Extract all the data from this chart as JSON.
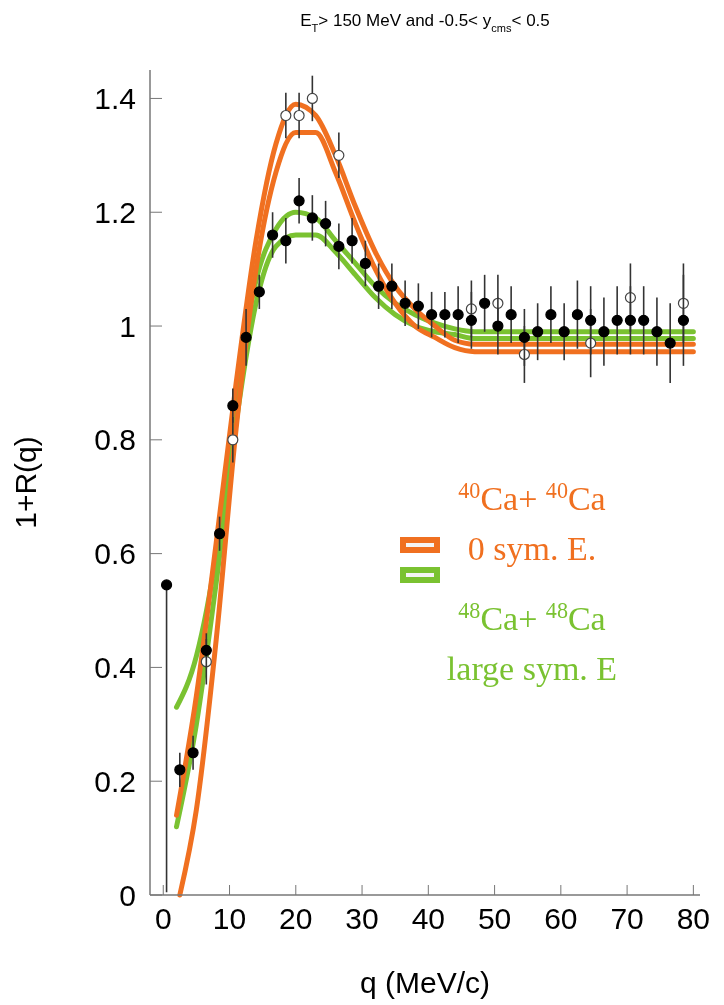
{
  "chart_data": {
    "type": "line",
    "title": "E$_{T}$> 150 MeV and -0.5< y$_{cms}$< 0.5",
    "xlabel": "q (MeV/c)",
    "ylabel": "1+R(q)",
    "xlim": [
      -2,
      81
    ],
    "xticks": [
      0,
      10,
      20,
      30,
      40,
      50,
      60,
      70,
      80
    ],
    "ylim": [
      0,
      1.45
    ],
    "yticks": [
      0,
      {
        "value": 0.2,
        "label": "0.2"
      },
      {
        "value": 0.4,
        "label": "0.4"
      },
      {
        "value": 0.6,
        "label": "0.6"
      },
      {
        "value": 0.8,
        "label": "0.8"
      },
      1,
      {
        "value": 1.2,
        "label": "1.2"
      },
      {
        "value": 1.4,
        "label": "1.4"
      }
    ],
    "grid": false,
    "legend": "right",
    "line_style": "solid",
    "marker": "none",
    "series": [
      {
        "name": "$^{48}$Ca+ $^{48}$Ca\nlarge sym. E",
        "color": "#7ac231",
        "x": [
          2,
          5,
          8,
          11,
          14,
          17,
          20,
          23,
          26,
          29,
          32,
          35,
          38,
          41,
          44,
          47,
          50,
          60,
          70,
          80
        ],
        "values": [
          0.33,
          0.42,
          0.6,
          0.88,
          1.08,
          1.17,
          1.2,
          1.19,
          1.15,
          1.11,
          1.07,
          1.04,
          1.02,
          1.005,
          0.995,
          0.99,
          0.99,
          0.99,
          0.99,
          0.99
        ]
      },
      {
        "color": "#7ac231",
        "x": [
          2,
          5,
          8,
          11,
          14,
          17,
          20,
          23,
          26,
          29,
          32,
          35,
          38,
          41,
          44,
          47,
          50,
          60,
          70,
          80
        ],
        "values": [
          0.12,
          0.3,
          0.55,
          0.83,
          1.04,
          1.14,
          1.16,
          1.16,
          1.13,
          1.09,
          1.05,
          1.02,
          1.0,
          0.99,
          0.985,
          0.978,
          0.978,
          0.978,
          0.978,
          0.978
        ]
      },
      {
        "name": "$^{40}$Ca+ $^{40}$Ca\n0 sym. E.",
        "color": "#f07020",
        "x": [
          2,
          5,
          8,
          11,
          14,
          17,
          20,
          23,
          26,
          29,
          32,
          35,
          38,
          41,
          44,
          47,
          50,
          60,
          70,
          80
        ],
        "values": [
          0.14,
          0.35,
          0.62,
          0.9,
          1.15,
          1.32,
          1.39,
          1.37,
          1.3,
          1.21,
          1.13,
          1.07,
          1.03,
          1.0,
          0.975,
          0.968,
          0.968,
          0.968,
          0.968,
          0.968
        ]
      },
      {
        "color": "#f07020",
        "x": [
          2.5,
          5,
          8,
          11,
          14,
          17,
          20,
          23,
          26,
          29,
          32,
          35,
          38,
          41,
          44,
          47,
          50,
          60,
          70,
          80
        ],
        "values": [
          0.0,
          0.15,
          0.45,
          0.82,
          1.1,
          1.27,
          1.34,
          1.34,
          1.27,
          1.18,
          1.1,
          1.04,
          1.0,
          0.98,
          0.962,
          0.955,
          0.955,
          0.955,
          0.955,
          0.955
        ]
      },
      {
        "type": "scatter",
        "color": "#444444",
        "marker": "circle",
        "x": [
          6.5,
          10.5,
          18.5,
          20.5,
          22.5,
          26.5,
          46.5,
          50.5,
          54.5,
          64.5,
          70.5,
          78.5
        ],
        "values": [
          0.41,
          0.8,
          1.37,
          1.37,
          1.4,
          1.3,
          1.03,
          1.04,
          0.95,
          0.97,
          1.05,
          1.04
        ],
        "errors": [
          0.04,
          0.04,
          0.04,
          0.04,
          0.04,
          0.04,
          0.05,
          0.05,
          0.05,
          0.06,
          0.06,
          0.07
        ]
      },
      {
        "type": "scatter",
        "color": "#000000",
        "marker": "circle",
        "x": [
          0.5,
          2.5,
          4.5,
          6.5,
          8.5,
          10.5,
          12.5,
          14.5,
          16.5,
          18.5,
          20.5,
          22.5,
          24.5,
          26.5,
          28.5,
          30.5,
          32.5,
          34.5,
          36.5,
          38.5,
          40.5,
          42.5,
          44.5,
          46.5,
          48.5,
          50.5,
          52.5,
          54.5,
          56.5,
          58.5,
          60.5,
          62.5,
          64.5,
          66.5,
          68.5,
          70.5,
          72.5,
          74.5,
          76.5,
          78.5
        ],
        "values": [
          0.545,
          0.22,
          0.25,
          0.43,
          0.635,
          0.86,
          0.98,
          1.06,
          1.16,
          1.15,
          1.22,
          1.19,
          1.18,
          1.14,
          1.15,
          1.11,
          1.07,
          1.07,
          1.04,
          1.035,
          1.02,
          1.02,
          1.02,
          1.01,
          1.04,
          1.0,
          1.02,
          0.98,
          0.99,
          1.02,
          0.99,
          1.02,
          1.01,
          0.99,
          1.01,
          1.01,
          1.01,
          0.99,
          0.97,
          1.01
        ],
        "errors": [
          [
            0.54,
            0
          ],
          0.03,
          0.03,
          0.03,
          0.03,
          0.03,
          0.05,
          0.03,
          0.04,
          0.04,
          0.04,
          0.04,
          0.04,
          0.04,
          0.04,
          0.04,
          0.04,
          0.04,
          0.04,
          0.04,
          0.04,
          0.04,
          0.05,
          0.05,
          0.05,
          0.05,
          0.05,
          0.05,
          0.05,
          0.05,
          0.05,
          0.06,
          0.06,
          0.06,
          0.06,
          0.06,
          0.06,
          0.06,
          0.07,
          0.08
        ]
      }
    ]
  }
}
